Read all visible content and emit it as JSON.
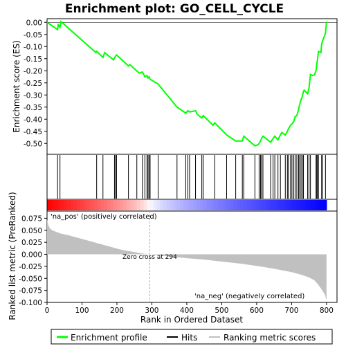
{
  "chart_data": {
    "type": "line",
    "title": "Enrichment plot: GO_CELL_CYCLE",
    "panels": {
      "es": {
        "ylabel": "Enrichment score (ES)",
        "ylim": [
          -0.545,
          0.015
        ],
        "yticks": [
          0.0,
          -0.05,
          -0.1,
          -0.15,
          -0.2,
          -0.25,
          -0.3,
          -0.35,
          -0.4,
          -0.45,
          -0.5
        ],
        "ytick_labels": [
          "0.00",
          "-0.05",
          "-0.10",
          "-0.15",
          "-0.20",
          "-0.25",
          "-0.30",
          "-0.35",
          "-0.40",
          "-0.45",
          "-0.50"
        ],
        "series": [
          {
            "name": "Enrichment profile",
            "color": "#00ff00",
            "x": [
              0,
              30,
              32,
              37,
              40,
              140,
              142,
              160,
              165,
              190,
              193,
              196,
              199,
              233,
              237,
              264,
              273,
              280,
              286,
              289,
              292,
              295,
              318,
              372,
              397,
              403,
              408,
              425,
              430,
              443,
              447,
              475,
              480,
              514,
              540,
              559,
              563,
              595,
              605,
              607,
              611,
              614,
              618,
              640,
              647,
              652,
              661,
              668,
              672,
              682,
              688,
              691,
              697,
              701,
              706,
              710,
              715,
              720,
              723,
              727,
              731,
              734,
              736,
              746,
              750,
              754,
              761,
              766,
              770,
              772,
              774,
              777,
              784,
              786,
              788,
              797,
              800
            ],
            "y": [
              0.0,
              -0.03,
              -0.01,
              -0.02,
              0.003,
              -0.125,
              -0.12,
              -0.145,
              -0.125,
              -0.155,
              -0.148,
              -0.14,
              -0.135,
              -0.18,
              -0.175,
              -0.21,
              -0.205,
              -0.225,
              -0.22,
              -0.23,
              -0.225,
              -0.235,
              -0.255,
              -0.35,
              -0.375,
              -0.365,
              -0.37,
              -0.365,
              -0.38,
              -0.395,
              -0.385,
              -0.425,
              -0.415,
              -0.465,
              -0.49,
              -0.49,
              -0.47,
              -0.51,
              -0.505,
              -0.5,
              -0.49,
              -0.48,
              -0.47,
              -0.495,
              -0.48,
              -0.47,
              -0.485,
              -0.465,
              -0.455,
              -0.465,
              -0.45,
              -0.44,
              -0.425,
              -0.42,
              -0.41,
              -0.39,
              -0.385,
              -0.36,
              -0.34,
              -0.32,
              -0.305,
              -0.285,
              -0.28,
              -0.295,
              -0.27,
              -0.215,
              -0.22,
              -0.215,
              -0.2,
              -0.175,
              -0.155,
              -0.12,
              -0.125,
              -0.09,
              -0.08,
              -0.045,
              0.002
            ]
          }
        ]
      },
      "hits": {
        "label": "Hits",
        "positions": [
          30,
          37,
          142,
          160,
          193,
          196,
          199,
          233,
          257,
          273,
          280,
          286,
          289,
          292,
          295,
          318,
          372,
          397,
          403,
          408,
          425,
          443,
          447,
          480,
          514,
          540,
          559,
          563,
          595,
          607,
          611,
          614,
          618,
          640,
          647,
          652,
          661,
          668,
          682,
          688,
          691,
          697,
          701,
          706,
          710,
          715,
          720,
          723,
          727,
          731,
          734,
          746,
          750,
          754,
          770,
          772,
          774,
          777,
          786,
          788,
          797
        ]
      },
      "ranking": {
        "ylabel": "Ranked list metric (PreRanked)",
        "xlabel": "Rank in Ordered Dataset",
        "xlim": [
          0,
          830
        ],
        "ylim": [
          -0.1,
          0.09
        ],
        "yticks": [
          0.075,
          0.05,
          0.025,
          0.0,
          -0.025,
          -0.05,
          -0.075,
          -0.1
        ],
        "ytick_labels": [
          "0.075",
          "0.050",
          "0.025",
          "0.000",
          "-0.025",
          "-0.050",
          "-0.075",
          "-0.100"
        ],
        "xticks": [
          0,
          100,
          200,
          300,
          400,
          500,
          600,
          700,
          800
        ],
        "xtick_labels": [
          "0",
          "100",
          "200",
          "300",
          "400",
          "500",
          "600",
          "700",
          "800"
        ],
        "x": [
          0,
          3,
          8,
          15,
          25,
          40,
          60,
          90,
          120,
          150,
          180,
          210,
          240,
          270,
          294,
          320,
          360,
          400,
          450,
          500,
          550,
          600,
          650,
          700,
          730,
          750,
          765,
          775,
          785,
          795,
          800
        ],
        "y": [
          0.072,
          0.062,
          0.054,
          0.05,
          0.047,
          0.043,
          0.04,
          0.034,
          0.028,
          0.022,
          0.016,
          0.01,
          0.006,
          0.002,
          0.0,
          -0.002,
          -0.005,
          -0.008,
          -0.011,
          -0.015,
          -0.019,
          -0.024,
          -0.03,
          -0.037,
          -0.043,
          -0.048,
          -0.054,
          -0.062,
          -0.072,
          -0.083,
          -0.096
        ],
        "color": "#c0c0c0",
        "zero_cross_label": "Zero cross at 294",
        "zero_cross_at": 294,
        "pos_label": "'na_pos' (positively correlated)",
        "neg_label": "'na_neg' (negatively correlated)",
        "pos_color": "#ff0000",
        "neg_color": "#0000ff"
      }
    },
    "legend": {
      "placement": "bottom",
      "items": [
        {
          "label": "Enrichment profile",
          "color": "#00ff00",
          "style": "line"
        },
        {
          "label": "Hits",
          "color": "#000000",
          "style": "line"
        },
        {
          "label": "Ranking metric scores",
          "color": "#c0c0c0",
          "style": "line"
        }
      ]
    },
    "grid": false
  }
}
